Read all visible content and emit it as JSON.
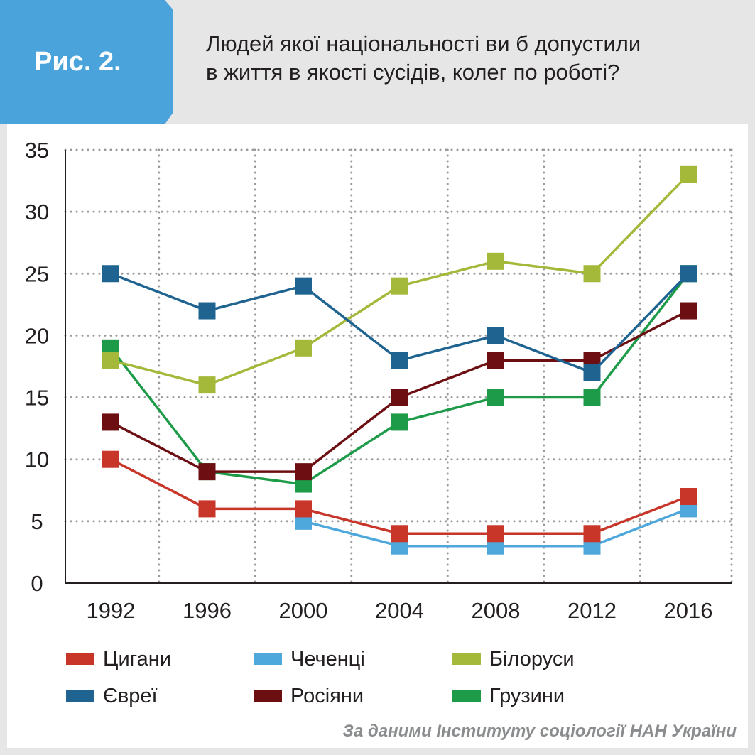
{
  "header": {
    "badge_label": "Рис. 2.",
    "title_line1": "Людей якої національності ви б допустили",
    "title_line2": "в життя в якості сусідів, колег по роботі?",
    "badge_color": "#4aa3db"
  },
  "source_note": "За даними Інституту соціології НАН України",
  "chart_data": {
    "type": "line",
    "title": "Людей якої національності ви б допустили в життя в якості сусідів, колег по роботі?",
    "xlabel": "",
    "ylabel": "",
    "x": [
      "1992",
      "1996",
      "2000",
      "2004",
      "2008",
      "2012",
      "2016"
    ],
    "ylim": [
      0,
      35
    ],
    "yticks": [
      "0",
      "5",
      "10",
      "15",
      "20",
      "25",
      "30",
      "35"
    ],
    "grid": true,
    "grid_style": "dotted",
    "legend_position": "bottom",
    "series": [
      {
        "name": "Цигани",
        "color": "#c8362a",
        "values": [
          10,
          6,
          6,
          4,
          4,
          4,
          7
        ]
      },
      {
        "name": "Чеченці",
        "color": "#4fa8dc",
        "values": [
          null,
          null,
          5,
          3,
          3,
          3,
          6
        ]
      },
      {
        "name": "Білоруси",
        "color": "#a4b83a",
        "values": [
          18,
          16,
          19,
          24,
          26,
          25,
          33
        ]
      },
      {
        "name": "Євреї",
        "color": "#1f6391",
        "values": [
          25,
          22,
          24,
          18,
          20,
          17,
          25
        ]
      },
      {
        "name": "Росіяни",
        "color": "#6d0f12",
        "values": [
          13,
          9,
          9,
          15,
          18,
          18,
          22
        ]
      },
      {
        "name": "Грузини",
        "color": "#1e9b49",
        "values": [
          19,
          9,
          8,
          13,
          15,
          15,
          25
        ]
      }
    ],
    "draw_order": [
      "Грузини",
      "Росіяни",
      "Білоруси",
      "Євреї",
      "Чеченці",
      "Цигани"
    ]
  }
}
